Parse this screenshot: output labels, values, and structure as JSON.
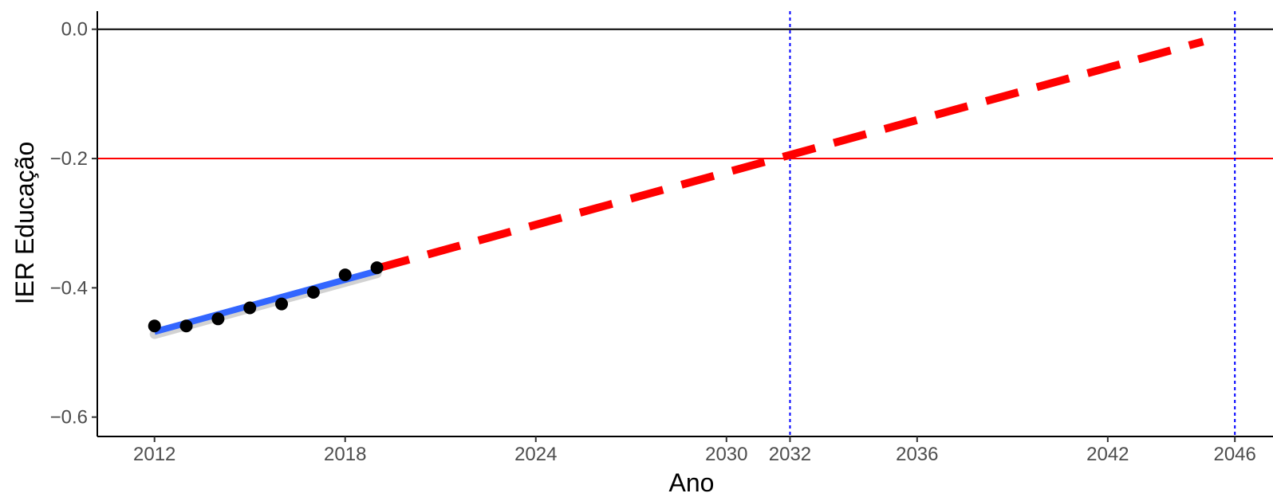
{
  "chart_data": {
    "type": "line",
    "title": "",
    "xlabel": "Ano",
    "ylabel": "IER Educação",
    "xlim": [
      2010.2,
      2047.2
    ],
    "ylim": [
      -0.63,
      0.028
    ],
    "x_ticks": [
      2012,
      2018,
      2024,
      2030,
      2032,
      2036,
      2042,
      2046
    ],
    "y_ticks": [
      0.0,
      -0.2,
      -0.4,
      -0.6
    ],
    "y_tick_labels": [
      "0.0",
      "−0.2",
      "−0.4",
      "−0.6"
    ],
    "grid": false,
    "legend": "none",
    "points": {
      "x": [
        2012,
        2013,
        2014,
        2015,
        2016,
        2017,
        2018,
        2019
      ],
      "y": [
        -0.459,
        -0.459,
        -0.448,
        -0.431,
        -0.425,
        -0.407,
        -0.38,
        -0.369
      ],
      "color": "#000000"
    },
    "fit": {
      "x": [
        2012,
        2019
      ],
      "y": [
        -0.468,
        -0.374
      ],
      "color": "#3366ff"
    },
    "projection": {
      "x": [
        2019,
        2045
      ],
      "y": [
        -0.37,
        -0.019
      ],
      "color": "#ff0000",
      "style": "dashed"
    },
    "reference_lines": {
      "horizontal": [
        {
          "y": 0.0,
          "color": "#000000"
        },
        {
          "y": -0.2,
          "color": "#ff0000"
        }
      ],
      "vertical": [
        {
          "x": 2032,
          "color": "#0000ff",
          "style": "dotted"
        },
        {
          "x": 2046,
          "color": "#0000ff",
          "style": "dotted"
        }
      ]
    }
  }
}
